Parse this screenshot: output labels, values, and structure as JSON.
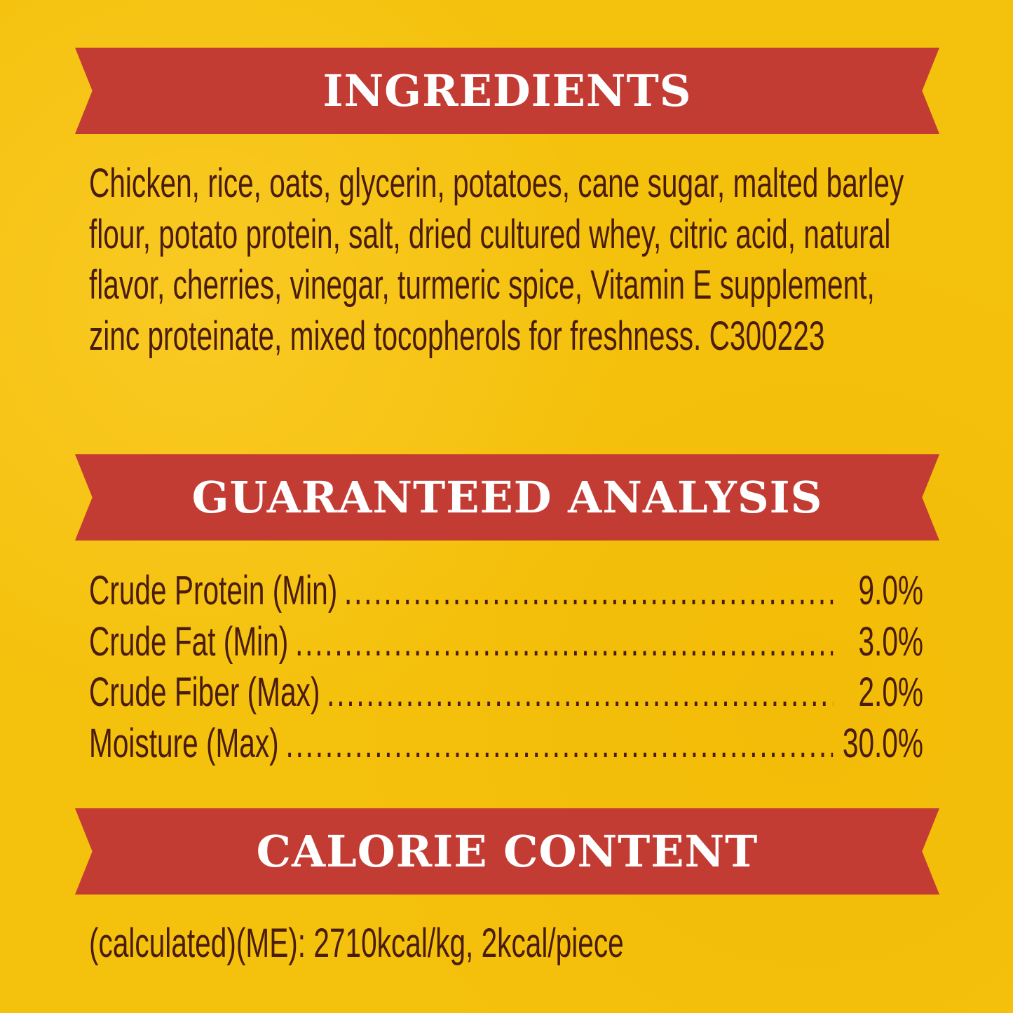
{
  "ingredients": {
    "title": "INGREDIENTS",
    "lines": [
      "Chicken, rice, oats, glycerin, potatoes, cane sugar, malted barley",
      "flour, potato protein, salt, dried cultured whey, citric acid, natural",
      "flavor, cherries, vinegar, turmeric spice, Vitamin E supplement,",
      "zinc proteinate, mixed tocopherols for freshness. C300223"
    ]
  },
  "analysis": {
    "title": "GUARANTEED ANALYSIS",
    "rows": [
      {
        "label": "Crude Protein (Min)",
        "value": "9.0%"
      },
      {
        "label": "Crude Fat (Min)",
        "value": "3.0%"
      },
      {
        "label": "Crude Fiber (Max)",
        "value": "2.0%"
      },
      {
        "label": "Moisture (Max)",
        "value": "30.0%"
      }
    ]
  },
  "calories": {
    "title": "CALORIE CONTENT",
    "text": "(calculated)(ME): 2710kcal/kg, 2kcal/piece"
  },
  "colors": {
    "background": "#f4c10c",
    "banner": "#c33c34",
    "text": "#4a1c0c"
  }
}
